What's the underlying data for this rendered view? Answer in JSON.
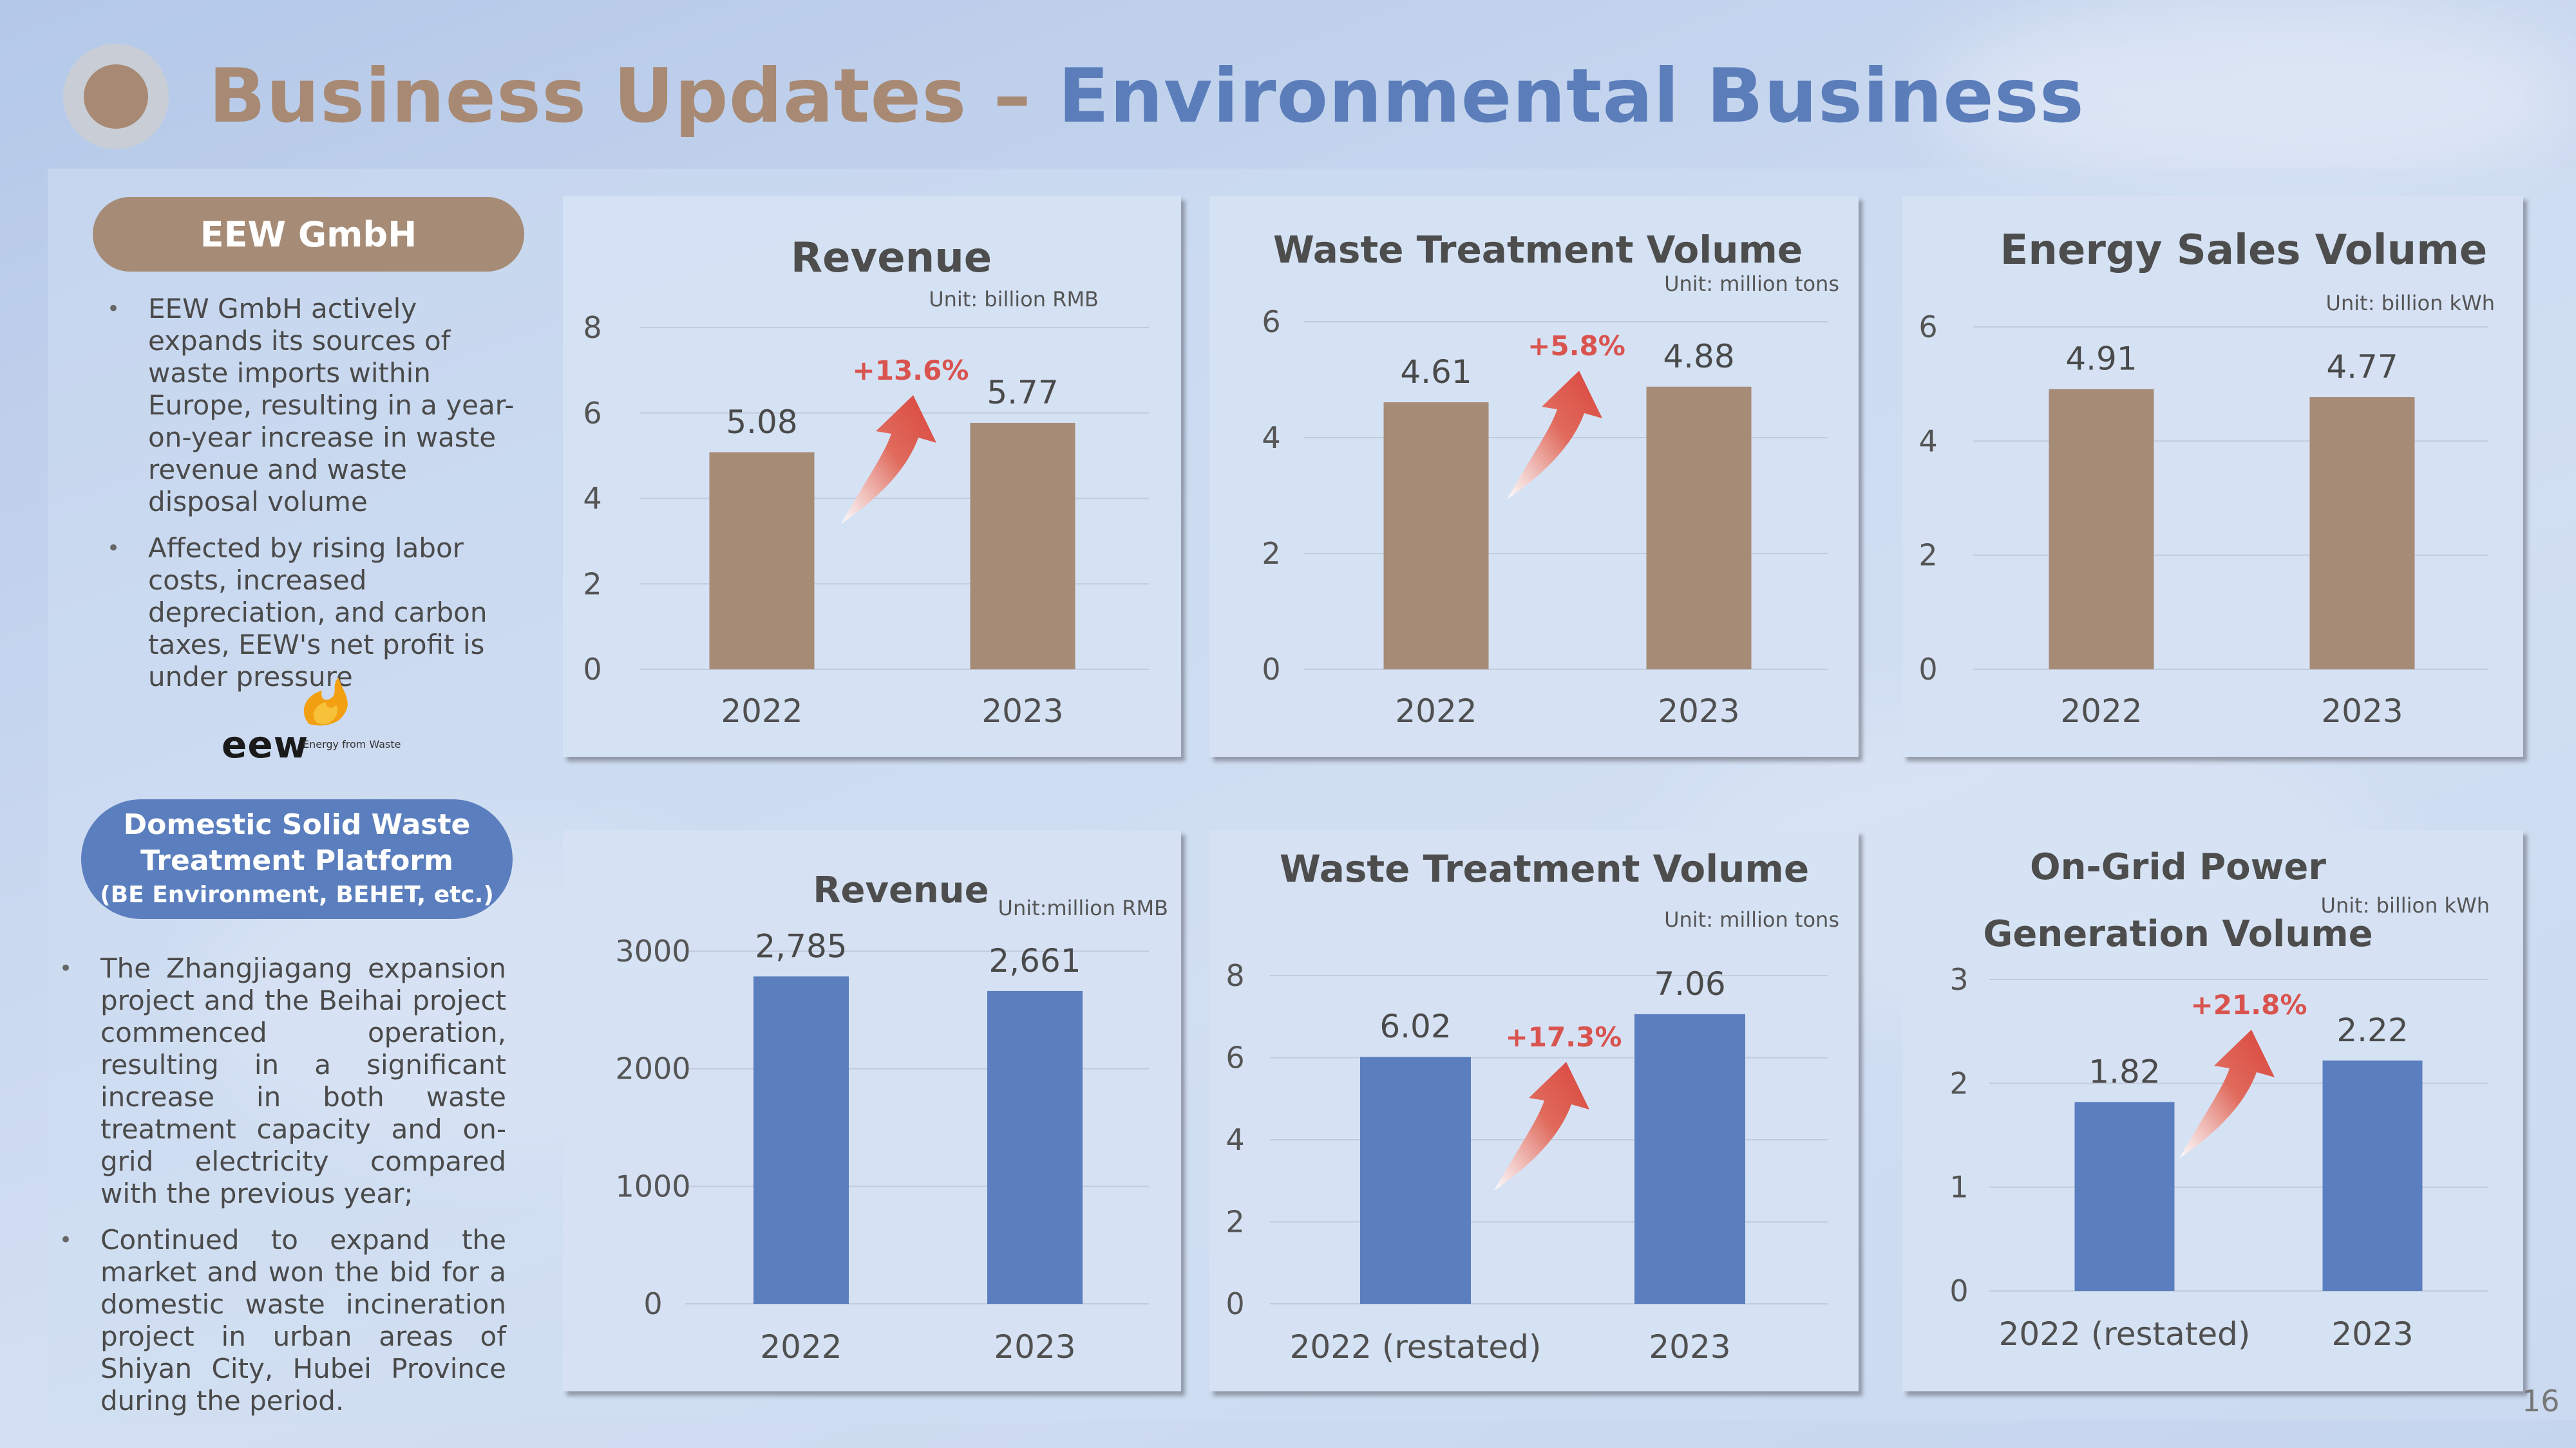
{
  "title": {
    "part1": "Business Updates – ",
    "part2": "Environmental Business"
  },
  "eew": {
    "label": "EEW GmbH",
    "notes": [
      "EEW GmbH actively expands its sources of waste imports within Europe, resulting in a year-on-year increase in waste revenue and waste disposal volume",
      "Affected by rising labor costs, increased depreciation, and carbon taxes, EEW's net profit is under pressure"
    ],
    "logo": {
      "word": "eew",
      "tagline": "Energy from Waste"
    }
  },
  "domestic": {
    "label_line1": "Domestic Solid Waste",
    "label_line2": "Treatment Platform",
    "label_line3": "(BE Environment, BEHET, etc.)",
    "notes": [
      "The Zhangjiagang expansion project and the Beihai project commenced operation, resulting in a significant increase in both waste treatment capacity and on-grid electricity compared with the previous year;",
      "Continued to expand the market and won the bid for a domestic waste incineration project in urban areas of Shiyan City, Hubei Province during the period."
    ]
  },
  "colors": {
    "brown": "#a68b76",
    "blue": "#5b7fbe",
    "growth": "#d9534f"
  },
  "chart_data": [
    {
      "type": "bar",
      "title": [
        "Revenue"
      ],
      "unit": "Unit: billion RMB",
      "categories": [
        "2022",
        "2023"
      ],
      "values": [
        5.08,
        5.77
      ],
      "value_labels": [
        "5.08",
        "5.77"
      ],
      "yticks": [
        0,
        2,
        4,
        6,
        8
      ],
      "ylim": [
        0,
        8
      ],
      "growth": "+13.6%",
      "color": "#a68b76"
    },
    {
      "type": "bar",
      "title": [
        "Waste Treatment Volume"
      ],
      "unit": "Unit: million tons",
      "categories": [
        "2022",
        "2023"
      ],
      "values": [
        4.61,
        4.88
      ],
      "value_labels": [
        "4.61",
        "4.88"
      ],
      "yticks": [
        0,
        2,
        4,
        6
      ],
      "ylim": [
        0,
        6
      ],
      "growth": "+5.8%",
      "color": "#a68b76"
    },
    {
      "type": "bar",
      "title": [
        "Energy Sales Volume"
      ],
      "unit": "Unit: billion kWh",
      "categories": [
        "2022",
        "2023"
      ],
      "values": [
        4.91,
        4.77
      ],
      "value_labels": [
        "4.91",
        "4.77"
      ],
      "yticks": [
        0,
        2,
        4,
        6
      ],
      "ylim": [
        0,
        6
      ],
      "growth": "",
      "color": "#a68b76"
    },
    {
      "type": "bar",
      "title": [
        "Revenue"
      ],
      "unit": "Unit:million RMB",
      "categories": [
        "2022",
        "2023"
      ],
      "values": [
        2785,
        2661
      ],
      "value_labels": [
        "2,785",
        "2,661"
      ],
      "yticks": [
        0,
        1000,
        2000,
        3000
      ],
      "ylim": [
        0,
        3000
      ],
      "growth": "",
      "color": "#5b7fbe"
    },
    {
      "type": "bar",
      "title": [
        "Waste Treatment Volume"
      ],
      "unit": "Unit: million tons",
      "categories": [
        "2022 (restated)",
        "2023"
      ],
      "values": [
        6.02,
        7.06
      ],
      "value_labels": [
        "6.02",
        "7.06"
      ],
      "yticks": [
        0,
        2,
        4,
        6,
        8
      ],
      "ylim": [
        0,
        8
      ],
      "growth": "+17.3%",
      "color": "#5b7fbe"
    },
    {
      "type": "bar",
      "title": [
        "On-Grid Power",
        "Generation Volume"
      ],
      "unit": "Unit: billion kWh",
      "categories": [
        "2022 (restated)",
        "2023"
      ],
      "values": [
        1.82,
        2.22
      ],
      "value_labels": [
        "1.82",
        "2.22"
      ],
      "yticks": [
        0,
        1,
        2,
        3
      ],
      "ylim": [
        0,
        3
      ],
      "growth": "+21.8%",
      "color": "#5b7fbe"
    }
  ],
  "page_number": "16"
}
